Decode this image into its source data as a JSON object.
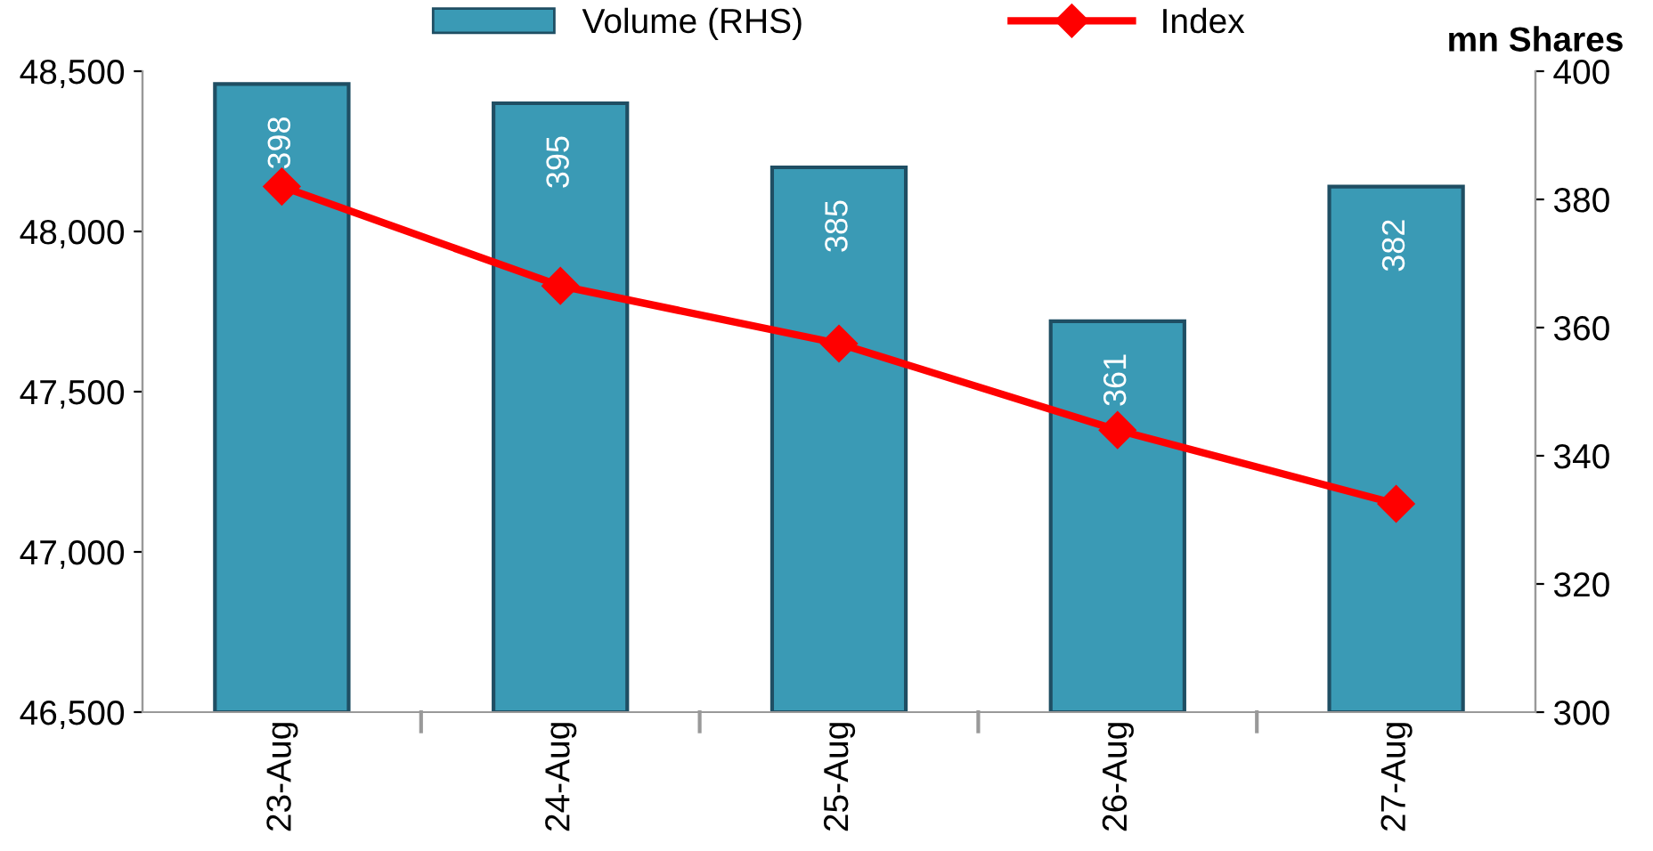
{
  "chart_data": {
    "type": "bar",
    "categories": [
      "23-Aug",
      "24-Aug",
      "25-Aug",
      "26-Aug",
      "27-Aug"
    ],
    "series": [
      {
        "name": "Volume (RHS)",
        "axis": "y2",
        "color": "#3a9ab5",
        "values": [
          398,
          395,
          385,
          361,
          382
        ]
      },
      {
        "name": "Index",
        "type": "line",
        "color": "#ff0000",
        "marker": "diamond",
        "values": [
          48140,
          47830,
          47650,
          47380,
          47150
        ]
      }
    ],
    "value_labels": [
      "398",
      "395",
      "385",
      "361",
      "382"
    ],
    "ylim": [
      46500,
      48500
    ],
    "yticks": [
      {
        "value": 46500,
        "label": "46,500"
      },
      {
        "value": 47000,
        "label": "47,000"
      },
      {
        "value": 47500,
        "label": "47,500"
      },
      {
        "value": 48000,
        "label": "48,000"
      },
      {
        "value": 48500,
        "label": "48,500"
      }
    ],
    "y2lim": [
      300,
      400
    ],
    "y2ticks": [
      300,
      320,
      340,
      360,
      380,
      400
    ],
    "y2label": "mn Shares",
    "legend": "top",
    "grid": false
  }
}
